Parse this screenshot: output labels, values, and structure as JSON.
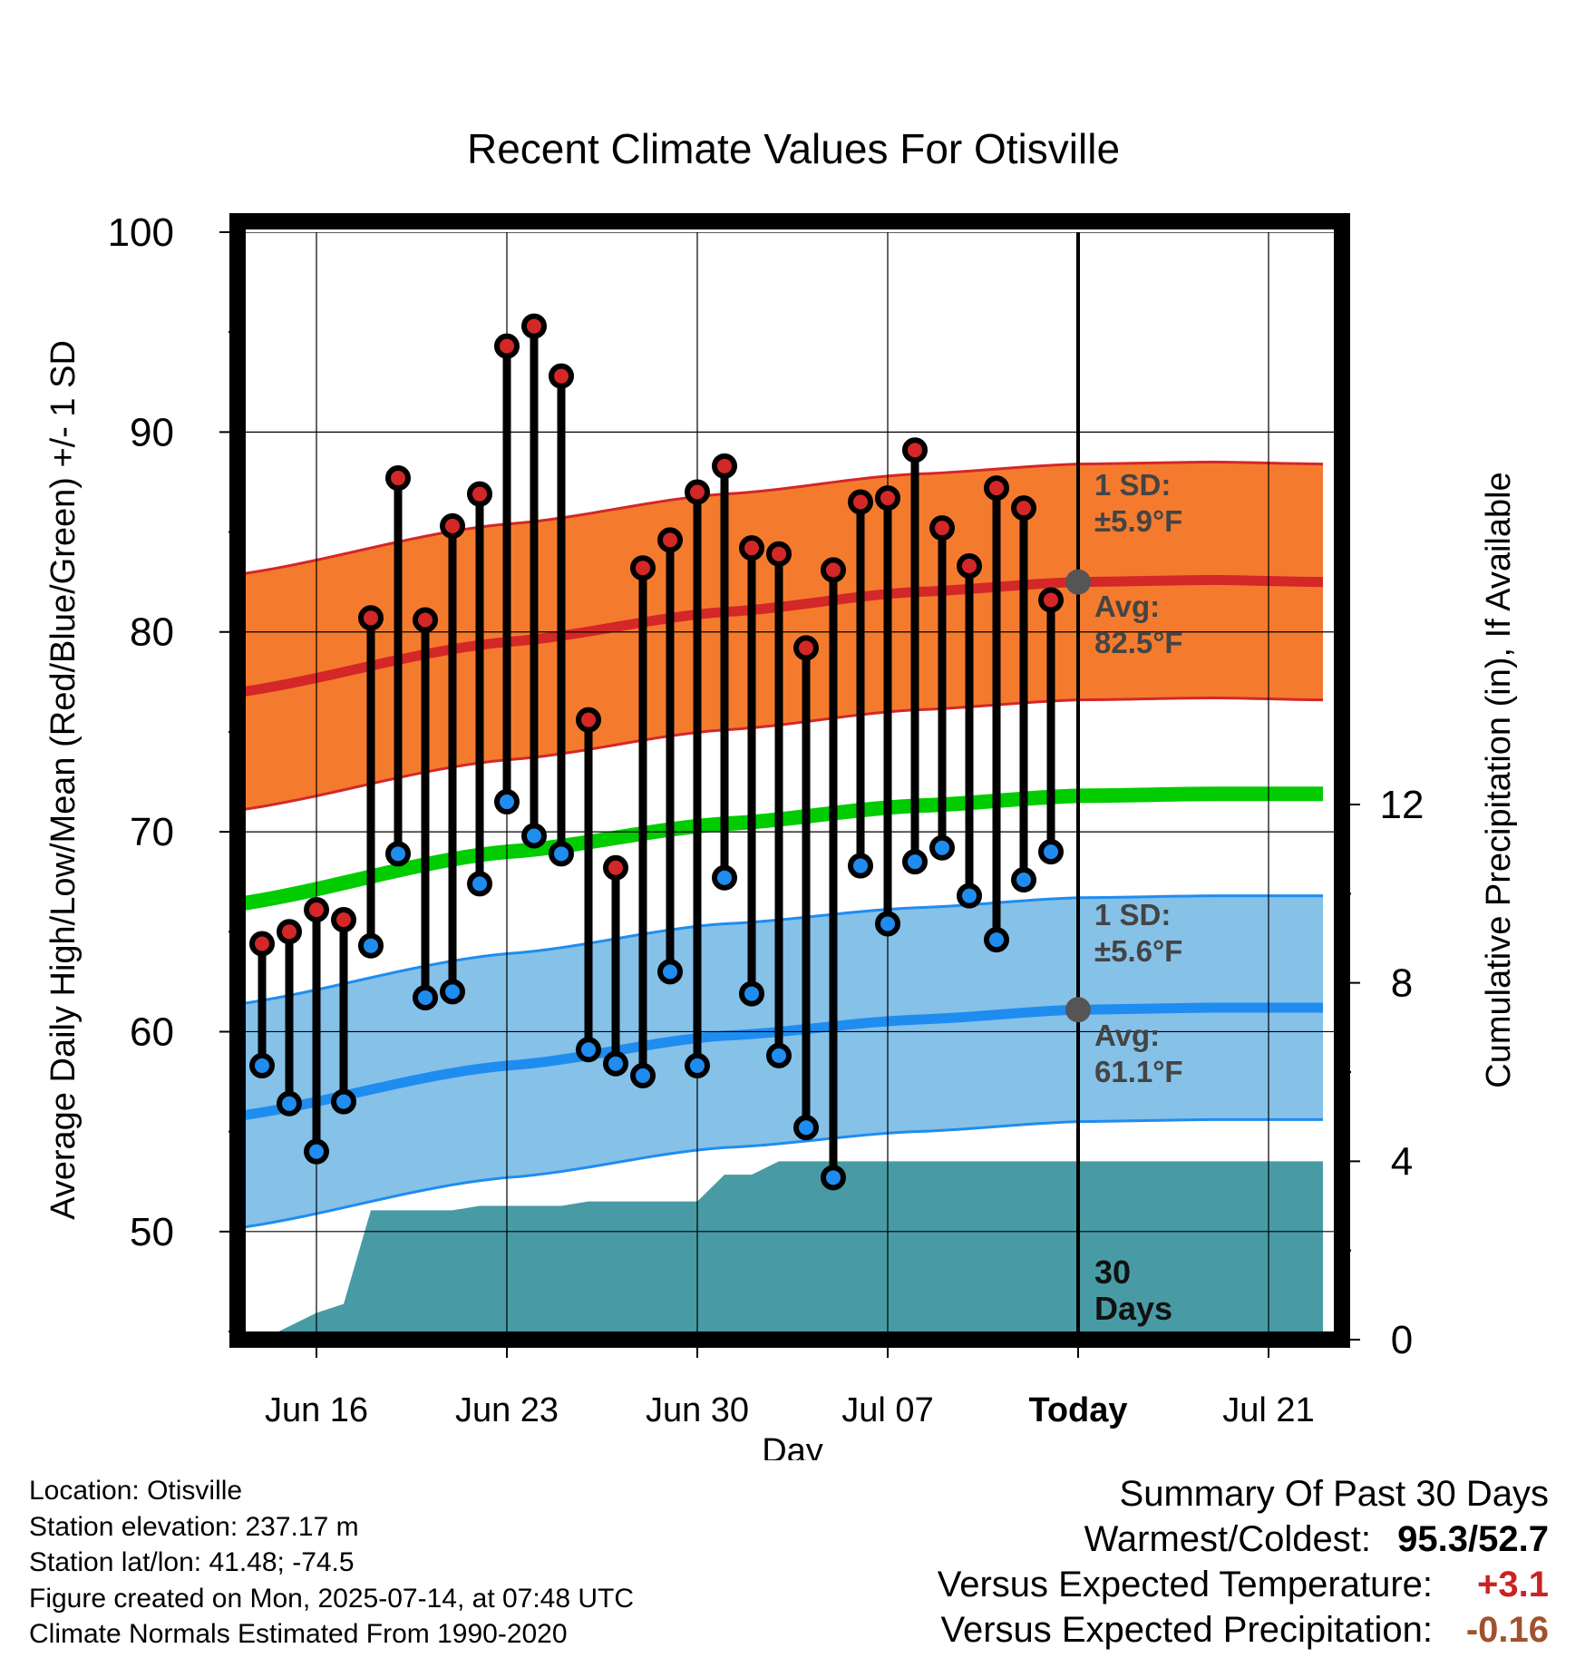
{
  "chart_data": {
    "type": "line",
    "title": "Recent Climate Values For Otisville",
    "xlabel": "Day",
    "ylabel": "Average Daily High/Low/Mean (Red/Blue/Green) +/- 1 SD",
    "y2label": "Cumulative Precipitation (in), If Available",
    "ylim": [
      45,
      100
    ],
    "y2lim": [
      0,
      12
    ],
    "yticks": [
      "100",
      "90",
      "80",
      "70",
      "60",
      "50"
    ],
    "y2ticks": [
      "12",
      "8",
      "4",
      "0"
    ],
    "xlim": [
      "2025-06-12",
      "2025-07-23"
    ],
    "xticks": [
      {
        "date": "2025-06-16",
        "label": "Jun 16"
      },
      {
        "date": "2025-06-23",
        "label": "Jun 23"
      },
      {
        "date": "2025-06-30",
        "label": "Jun 30"
      },
      {
        "date": "2025-07-07",
        "label": "Jul 07"
      },
      {
        "date": "2025-07-14",
        "label": "Today"
      },
      {
        "date": "2025-07-21",
        "label": "Jul 21"
      }
    ],
    "today": "2025-07-14",
    "dates": [
      "2025-06-14",
      "2025-06-15",
      "2025-06-16",
      "2025-06-17",
      "2025-06-18",
      "2025-06-19",
      "2025-06-20",
      "2025-06-21",
      "2025-06-22",
      "2025-06-23",
      "2025-06-24",
      "2025-06-25",
      "2025-06-26",
      "2025-06-27",
      "2025-06-28",
      "2025-06-29",
      "2025-06-30",
      "2025-07-01",
      "2025-07-02",
      "2025-07-03",
      "2025-07-04",
      "2025-07-05",
      "2025-07-06",
      "2025-07-07",
      "2025-07-08",
      "2025-07-09",
      "2025-07-10",
      "2025-07-11",
      "2025-07-12",
      "2025-07-13"
    ],
    "highs": [
      64.4,
      65.0,
      66.1,
      65.6,
      80.7,
      87.7,
      80.6,
      85.3,
      86.9,
      94.3,
      95.3,
      92.8,
      75.6,
      68.2,
      83.2,
      84.6,
      87.0,
      88.3,
      84.2,
      83.9,
      79.2,
      83.1,
      86.5,
      86.7,
      89.1,
      85.2,
      83.3,
      87.2,
      86.2,
      81.6
    ],
    "lows": [
      58.3,
      56.4,
      54.0,
      56.5,
      64.3,
      68.9,
      61.7,
      62.0,
      67.4,
      71.5,
      69.8,
      68.9,
      59.1,
      58.4,
      57.8,
      63.0,
      58.3,
      67.7,
      61.9,
      58.8,
      55.2,
      52.7,
      68.3,
      65.4,
      68.5,
      69.2,
      66.8,
      64.6,
      67.6,
      69.0
    ],
    "normal_high": {
      "dates": [
        "2025-06-12",
        "2025-06-23",
        "2025-07-01",
        "2025-07-08",
        "2025-07-14",
        "2025-07-19",
        "2025-07-23"
      ],
      "avg": [
        76.8,
        79.5,
        81.0,
        82.0,
        82.5,
        82.6,
        82.5
      ],
      "sd": 5.9
    },
    "normal_mean": {
      "dates": [
        "2025-06-12",
        "2025-06-23",
        "2025-07-01",
        "2025-07-08",
        "2025-07-14",
        "2025-07-19",
        "2025-07-23"
      ],
      "avg": [
        66.2,
        69.0,
        70.4,
        71.3,
        71.8,
        71.9,
        71.9
      ]
    },
    "normal_low": {
      "dates": [
        "2025-06-12",
        "2025-06-23",
        "2025-07-01",
        "2025-07-08",
        "2025-07-14",
        "2025-07-19",
        "2025-07-23"
      ],
      "avg": [
        55.6,
        58.3,
        59.8,
        60.6,
        61.1,
        61.2,
        61.2
      ],
      "sd": 5.6
    },
    "cumulative_precip": {
      "dates": [
        "2025-06-14",
        "2025-06-15",
        "2025-06-16",
        "2025-06-17",
        "2025-06-18",
        "2025-06-19",
        "2025-06-20",
        "2025-06-21",
        "2025-06-22",
        "2025-06-23",
        "2025-06-24",
        "2025-06-25",
        "2025-06-26",
        "2025-06-27",
        "2025-06-28",
        "2025-06-29",
        "2025-06-30",
        "2025-07-01",
        "2025-07-02",
        "2025-07-03",
        "2025-07-04",
        "2025-07-05",
        "2025-07-06",
        "2025-07-07",
        "2025-07-08",
        "2025-07-09",
        "2025-07-10",
        "2025-07-11",
        "2025-07-12",
        "2025-07-13",
        "2025-07-14",
        "2025-07-23"
      ],
      "values": [
        0.0,
        0.3,
        0.6,
        0.8,
        2.9,
        2.9,
        2.9,
        2.9,
        3.0,
        3.0,
        3.0,
        3.0,
        3.1,
        3.1,
        3.1,
        3.1,
        3.1,
        3.7,
        3.7,
        4.0,
        4.0,
        4.0,
        4.0,
        4.0,
        4.0,
        4.0,
        4.0,
        4.0,
        4.0,
        4.0,
        4.0,
        4.0
      ]
    },
    "annotations": {
      "high_sd": [
        "1 SD:",
        "±5.9°F"
      ],
      "high_avg": [
        "Avg:",
        "82.5°F"
      ],
      "low_sd": [
        "1 SD:",
        "±5.6°F"
      ],
      "low_avg": [
        "Avg:",
        "61.1°F"
      ],
      "days": [
        "30",
        "Days"
      ]
    },
    "colors": {
      "high_band": "#f47b2e",
      "high_line": "#d42728",
      "low_band": "#86c1e7",
      "low_line": "#1f8cf0",
      "mean_line": "#00cc00",
      "precip": "#489ba4",
      "high_marker": "#d42728",
      "low_marker": "#1f8cf0",
      "today_marker": "#555555",
      "annotation_text": "#444444"
    }
  },
  "info": {
    "location": "Location: Otisville",
    "elevation": "Station elevation: 237.17 m",
    "latlon": "Station lat/lon: 41.48; -74.5",
    "created": "Figure created on Mon, 2025-07-14, at 07:48 UTC",
    "normals": "Climate Normals Estimated From 1990-2020"
  },
  "summary": {
    "heading": "Summary Of Past 30 Days",
    "warmest_label": "Warmest/Coldest:",
    "warmest_value": "95.3/52.7",
    "temp_label": "Versus Expected Temperature:",
    "temp_value": "+3.1",
    "temp_color": "#cc2222",
    "precip_label": "Versus Expected Precipitation:",
    "precip_value": "-0.16",
    "precip_color": "#a0522d"
  }
}
